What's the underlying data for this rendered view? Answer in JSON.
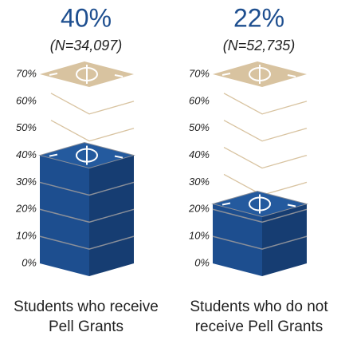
{
  "chart_data": {
    "type": "pictorial-stack",
    "categories": [
      "Students who receive Pell Grants",
      "Students who do not receive Pell Grants"
    ],
    "values": [
      40,
      22
    ],
    "value_labels": [
      "40%",
      "22%"
    ],
    "annotations": [
      "(N=34,097)",
      "(N=52,735)"
    ],
    "color": "#1d4e8f",
    "ghost_color": "#d8c3a0",
    "ylim": [
      0,
      70
    ],
    "yticks": [
      {
        "value": 0,
        "label": "0%"
      },
      {
        "value": 10,
        "label": "10%"
      },
      {
        "value": 20,
        "label": "20%"
      },
      {
        "value": 30,
        "label": "30%"
      },
      {
        "value": 40,
        "label": "40%"
      },
      {
        "value": 50,
        "label": "50%"
      },
      {
        "value": 60,
        "label": "60%"
      },
      {
        "value": 70,
        "label": "70%"
      }
    ]
  }
}
